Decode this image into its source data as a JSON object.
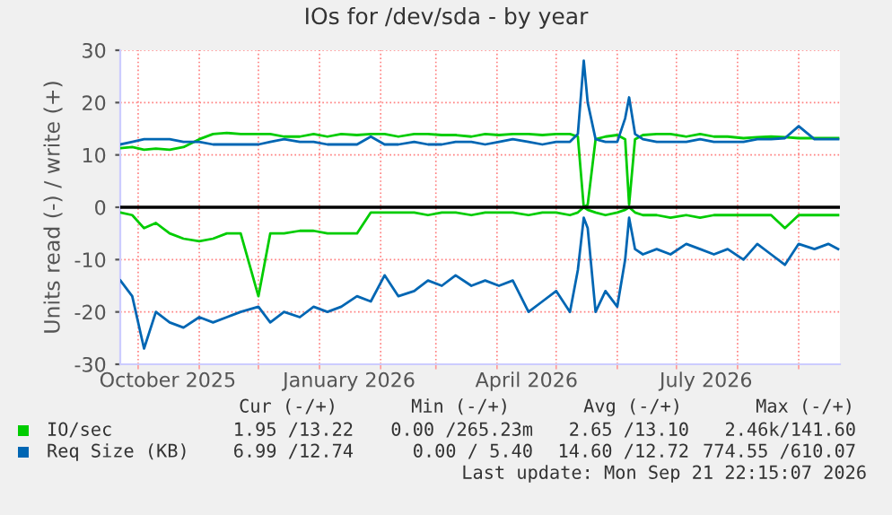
{
  "chart_data": {
    "type": "line",
    "title": "IOs for /dev/sda - by year",
    "ylabel": "Units read (-) / write (+)",
    "x": [
      "2025-09-22",
      "2025-09-28",
      "2025-10-04",
      "2025-10-10",
      "2025-10-17",
      "2025-10-24",
      "2025-11-01",
      "2025-11-08",
      "2025-11-15",
      "2025-11-22",
      "2025-12-01",
      "2025-12-07",
      "2025-12-14",
      "2025-12-22",
      "2025-12-29",
      "2026-01-05",
      "2026-01-12",
      "2026-01-20",
      "2026-01-27",
      "2026-02-03",
      "2026-02-10",
      "2026-02-18",
      "2026-02-25",
      "2026-03-04",
      "2026-03-11",
      "2026-03-19",
      "2026-03-26",
      "2026-04-02",
      "2026-04-09",
      "2026-04-17",
      "2026-04-24",
      "2026-05-01",
      "2026-05-08",
      "2026-05-12",
      "2026-05-15",
      "2026-05-17",
      "2026-05-21",
      "2026-05-26",
      "2026-06-01",
      "2026-06-05",
      "2026-06-07",
      "2026-06-10",
      "2026-06-14",
      "2026-06-21",
      "2026-06-28",
      "2026-07-06",
      "2026-07-13",
      "2026-07-20",
      "2026-07-27",
      "2026-08-04",
      "2026-08-11",
      "2026-08-18",
      "2026-08-25",
      "2026-09-01",
      "2026-09-09",
      "2026-09-16",
      "2026-09-21"
    ],
    "series": [
      {
        "name": "IO/sec",
        "color": "#00cc00",
        "values": [
          11.3,
          11.5,
          11,
          11.2,
          11,
          11.5,
          13,
          14,
          14.2,
          14,
          14,
          14,
          13.5,
          13.5,
          14,
          13.5,
          14,
          13.8,
          14,
          14,
          13.5,
          14,
          14,
          13.8,
          13.8,
          13.5,
          14,
          13.8,
          14,
          14,
          13.8,
          14,
          14,
          13.5,
          0,
          0.5,
          13,
          13.5,
          13.8,
          13,
          0.5,
          13,
          13.8,
          14,
          14,
          13.5,
          14,
          13.5,
          13.5,
          13.2,
          13.4,
          13.5,
          13.4,
          13.2,
          13.2,
          13.2,
          13.2
        ]
      },
      {
        "color": "#00cc00",
        "values": [
          -1,
          -1.5,
          -4,
          -3,
          -5,
          -6,
          -6.5,
          -6,
          -5,
          -5,
          -17,
          -5,
          -5,
          -4.5,
          -4.5,
          -5,
          -5,
          -5,
          -1,
          -1,
          -1,
          -1,
          -1.5,
          -1,
          -1,
          -1.5,
          -1,
          -1,
          -1,
          -1.5,
          -1,
          -1,
          -1.5,
          -1,
          0,
          -0.5,
          -1,
          -1.5,
          -1,
          -0.5,
          0,
          -1,
          -1.5,
          -1.5,
          -2,
          -1.5,
          -2,
          -1.5,
          -1.5,
          -1.5,
          -1.5,
          -1.5,
          -4,
          -1.5,
          -1.5,
          -1.5,
          -1.5
        ]
      },
      {
        "name": "Req Size (KB)",
        "color": "#0066b3",
        "values": [
          12,
          12.5,
          13,
          13,
          13,
          12.5,
          12.5,
          12,
          12,
          12,
          12,
          12.5,
          13,
          12.5,
          12.5,
          12,
          12,
          12,
          13.5,
          12,
          12,
          12.5,
          12,
          12,
          12.5,
          12.5,
          12,
          12.5,
          13,
          12.5,
          12,
          12.5,
          12.5,
          14,
          28,
          20,
          13,
          12.5,
          12.5,
          17,
          21,
          14,
          13,
          12.5,
          12.5,
          12.5,
          13,
          12.5,
          12.5,
          12.5,
          13,
          13,
          13.2,
          15.5,
          13,
          13,
          13
        ]
      },
      {
        "color": "#0066b3",
        "values": [
          -14,
          -17,
          -27,
          -20,
          -22,
          -23,
          -21,
          -22,
          -21,
          -20,
          -19,
          -22,
          -20,
          -21,
          -19,
          -20,
          -19,
          -17,
          -18,
          -13,
          -17,
          -16,
          -14,
          -15,
          -13,
          -15,
          -14,
          -15,
          -14,
          -20,
          -18,
          -16,
          -20,
          -12,
          -2,
          -4,
          -20,
          -16,
          -19,
          -10,
          -2,
          -8,
          -9,
          -8,
          -9,
          -7,
          -8,
          -9,
          -8,
          -10,
          -7,
          -9,
          -11,
          -7,
          -8,
          -7,
          -8
        ]
      }
    ],
    "xlim": [
      "2025-09-21T22:15",
      "2026-09-21T22:15"
    ],
    "xticks": [
      {
        "value": "2025-10-01",
        "label": null
      },
      {
        "value": "2025-10-16",
        "label": "October 2025"
      },
      {
        "value": "2025-11-01",
        "label": null
      },
      {
        "value": "2025-12-01",
        "label": null
      },
      {
        "value": "2026-01-01",
        "label": null
      },
      {
        "value": "2026-01-16",
        "label": "January 2026"
      },
      {
        "value": "2026-02-01",
        "label": null
      },
      {
        "value": "2026-03-01",
        "label": null
      },
      {
        "value": "2026-04-01",
        "label": null
      },
      {
        "value": "2026-04-16",
        "label": "April 2026"
      },
      {
        "value": "2026-05-01",
        "label": null
      },
      {
        "value": "2026-06-01",
        "label": null
      },
      {
        "value": "2026-07-01",
        "label": null
      },
      {
        "value": "2026-07-16",
        "label": "July 2026"
      },
      {
        "value": "2026-08-01",
        "label": null
      },
      {
        "value": "2026-09-01",
        "label": null
      }
    ],
    "ylim": [
      -30,
      30
    ],
    "yticks": [
      -30,
      -20,
      -10,
      0,
      10,
      20,
      30
    ],
    "ref_lines": [
      {
        "axis": "y",
        "value": 0,
        "color": "#000000"
      }
    ],
    "grid": true,
    "legend": "bottom",
    "marker": "none",
    "line_style": "solid",
    "annotations": [
      "Cur (-/+)",
      "Min (-/+)",
      "Avg (-/+)",
      "Max (-/+)",
      "1.95 /13.22",
      "0.00 /265.23m",
      "2.65 /13.10",
      "2.46k/141.60",
      "6.99 /12.74",
      "0.00 / 5.40",
      "14.60 /12.72",
      "774.55 /610.07",
      "Last update: Mon Sep 21 22:15:07 2026"
    ]
  }
}
